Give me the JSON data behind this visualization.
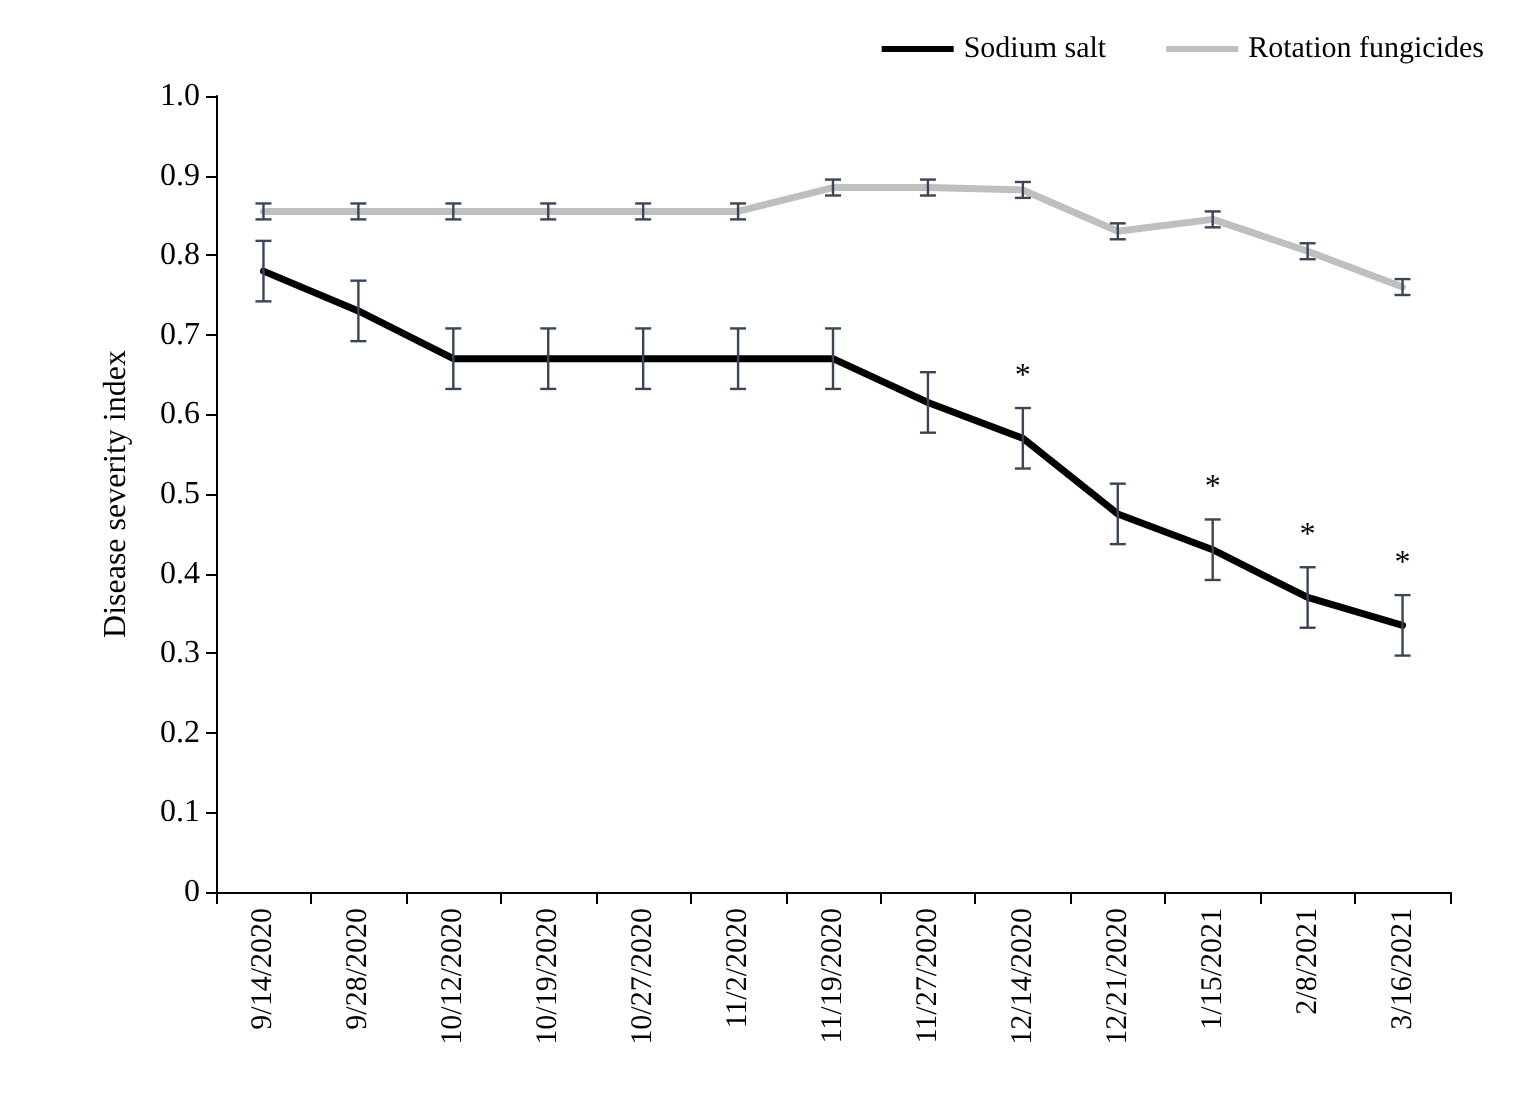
{
  "chart_data": {
    "type": "line",
    "ylabel": "Disease severity index",
    "categories": [
      "9/14/2020",
      "9/28/2020",
      "10/12/2020",
      "10/19/2020",
      "10/27/2020",
      "11/2/2020",
      "11/19/2020",
      "11/27/2020",
      "12/14/2020",
      "12/21/2020",
      "1/15/2021",
      "2/8/2021",
      "3/16/2021"
    ],
    "series": [
      {
        "name": "Sodium salt",
        "color": "#000000",
        "values": [
          0.78,
          0.73,
          0.67,
          0.67,
          0.67,
          0.67,
          0.67,
          0.615,
          0.57,
          0.475,
          0.43,
          0.37,
          0.335
        ],
        "errors": [
          0.038,
          0.038,
          0.038,
          0.038,
          0.038,
          0.038,
          0.038,
          0.038,
          0.038,
          0.038,
          0.038,
          0.038,
          0.038
        ]
      },
      {
        "name": "Rotation fungicides",
        "color": "#bfbfbf",
        "values": [
          0.855,
          0.855,
          0.855,
          0.855,
          0.855,
          0.855,
          0.885,
          0.885,
          0.882,
          0.83,
          0.845,
          0.805,
          0.76
        ],
        "errors": [
          0.01,
          0.01,
          0.01,
          0.01,
          0.01,
          0.01,
          0.01,
          0.01,
          0.01,
          0.01,
          0.01,
          0.01,
          0.01
        ]
      }
    ],
    "annotations": [
      {
        "text": "*",
        "x": "12/14/2020",
        "y": 0.57
      },
      {
        "text": "*",
        "x": "1/15/2021",
        "y": 0.43
      },
      {
        "text": "*",
        "x": "2/8/2021",
        "y": 0.37
      },
      {
        "text": "*",
        "x": "3/16/2021",
        "y": 0.335
      }
    ],
    "ylim": [
      0,
      1
    ],
    "yticks": [
      0,
      0.1,
      0.2,
      0.3,
      0.4,
      0.5,
      0.6,
      0.7,
      0.8,
      0.9,
      {
        "value": 1,
        "label": "1.0"
      }
    ],
    "legend": "top right",
    "grid": false,
    "marker": "none",
    "line_style": "solid"
  }
}
